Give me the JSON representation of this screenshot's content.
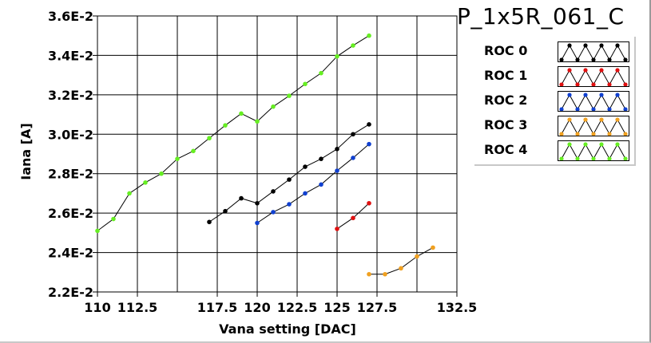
{
  "chart_data": {
    "type": "line",
    "title": "P_1x5R_061_C",
    "xlabel": "Vana setting [DAC]",
    "ylabel": "Iana [A]",
    "xlim": [
      110,
      132.5
    ],
    "ylim": [
      0.022,
      0.036
    ],
    "x_ticks": [
      110,
      112.5,
      117.5,
      120,
      122.5,
      125,
      127.5,
      132.5
    ],
    "x_tick_labels": [
      "110",
      "112.5",
      "117.5",
      "120",
      "122.5",
      "125",
      "127.5",
      "132.5"
    ],
    "y_ticks": [
      0.022,
      0.024,
      0.026,
      0.028,
      0.03,
      0.032,
      0.034,
      0.036
    ],
    "y_tick_labels": [
      "2.2E-2",
      "2.4E-2",
      "2.6E-2",
      "2.8E-2",
      "3.0E-2",
      "3.2E-2",
      "3.4E-2",
      "3.6E-2"
    ],
    "x_grid_lines": [
      112.5,
      115,
      117.5,
      120,
      122.5,
      125,
      127.5,
      130
    ],
    "grid": true,
    "legend_position": "top-right",
    "series": [
      {
        "name": "ROC 0",
        "color": "#000000",
        "x": [
          117,
          118,
          119,
          120,
          121,
          122,
          123,
          124,
          125,
          126,
          127
        ],
        "y": [
          0.02555,
          0.0261,
          0.02675,
          0.0265,
          0.0271,
          0.0277,
          0.02835,
          0.02875,
          0.02925,
          0.03,
          0.0305
        ]
      },
      {
        "name": "ROC 1",
        "color": "#e01010",
        "x": [
          125,
          126,
          127
        ],
        "y": [
          0.0252,
          0.02575,
          0.0265
        ]
      },
      {
        "name": "ROC 2",
        "color": "#1040d0",
        "x": [
          120,
          121,
          122,
          123,
          124,
          125,
          126,
          127
        ],
        "y": [
          0.0255,
          0.02605,
          0.02645,
          0.027,
          0.02745,
          0.02815,
          0.0288,
          0.0295
        ]
      },
      {
        "name": "ROC 3",
        "color": "#f0a020",
        "x": [
          127,
          128,
          129,
          130,
          131
        ],
        "y": [
          0.0229,
          0.0229,
          0.0232,
          0.0238,
          0.02425
        ]
      },
      {
        "name": "ROC 4",
        "color": "#66ee22",
        "x": [
          110,
          111,
          112,
          113,
          114,
          115,
          116,
          117,
          118,
          119,
          120,
          121,
          122,
          123,
          124,
          125,
          126,
          127
        ],
        "y": [
          0.0251,
          0.0257,
          0.027,
          0.02755,
          0.028,
          0.02875,
          0.02915,
          0.0298,
          0.03045,
          0.03105,
          0.03065,
          0.0314,
          0.03195,
          0.03255,
          0.0331,
          0.03395,
          0.0345,
          0.035
        ]
      }
    ]
  },
  "legend": {
    "items": [
      {
        "label": "ROC 0",
        "color": "#000000"
      },
      {
        "label": "ROC 1",
        "color": "#e01010"
      },
      {
        "label": "ROC 2",
        "color": "#1040d0"
      },
      {
        "label": "ROC 3",
        "color": "#f0a020"
      },
      {
        "label": "ROC 4",
        "color": "#66ee22"
      }
    ]
  }
}
